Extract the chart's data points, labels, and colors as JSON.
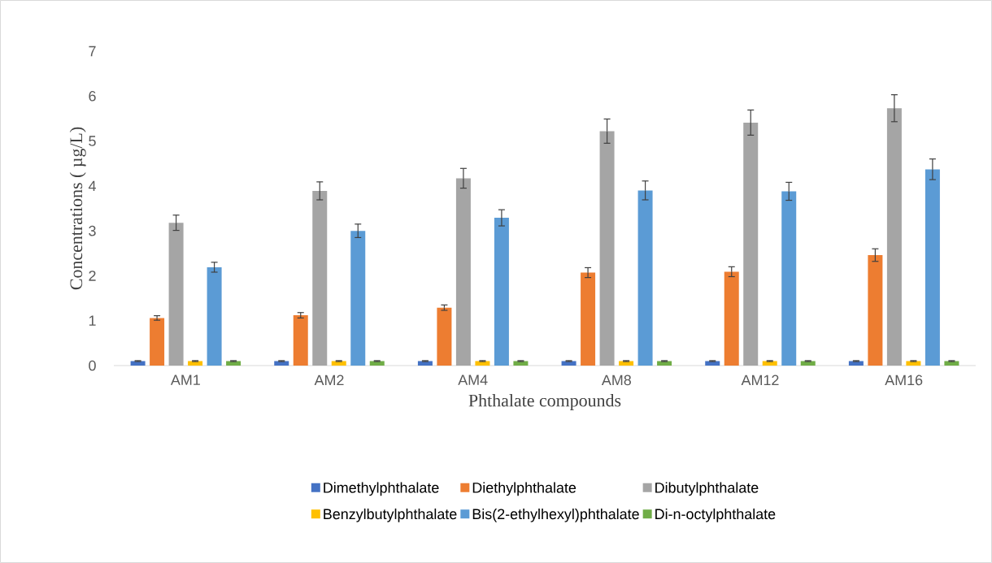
{
  "chart_data": {
    "type": "bar",
    "xlabel": "Phthalate compounds",
    "ylabel": "Concentrations ( µg/L)",
    "categories": [
      "AM1",
      "AM2",
      "AM4",
      "AM8",
      "AM12",
      "AM16"
    ],
    "series": [
      {
        "name": "Dimethylphthalate",
        "color": "#4472c4",
        "values": [
          0.1,
          0.1,
          0.1,
          0.1,
          0.1,
          0.1
        ],
        "errors": [
          0.01,
          0.01,
          0.01,
          0.01,
          0.01,
          0.01
        ]
      },
      {
        "name": "Diethylphthalate",
        "color": "#ed7d31",
        "values": [
          1.06,
          1.12,
          1.29,
          2.07,
          2.09,
          2.46
        ],
        "errors": [
          0.05,
          0.06,
          0.06,
          0.11,
          0.11,
          0.14
        ]
      },
      {
        "name": "Dibutylphthalate",
        "color": "#a5a5a5",
        "values": [
          3.18,
          3.89,
          4.17,
          5.22,
          5.41,
          5.73
        ],
        "errors": [
          0.17,
          0.2,
          0.22,
          0.27,
          0.28,
          0.3
        ]
      },
      {
        "name": "Benzylbutylphthalate",
        "color": "#ffc000",
        "values": [
          0.1,
          0.1,
          0.1,
          0.1,
          0.1,
          0.1
        ],
        "errors": [
          0.01,
          0.01,
          0.01,
          0.01,
          0.01,
          0.01
        ]
      },
      {
        "name": "Bis(2-ethylhexyl)phthalate",
        "color": "#5b9bd5",
        "values": [
          2.19,
          3.0,
          3.29,
          3.9,
          3.88,
          4.37
        ],
        "errors": [
          0.11,
          0.15,
          0.18,
          0.21,
          0.2,
          0.23
        ]
      },
      {
        "name": "Di-n-octylphthalate",
        "color": "#70ad47",
        "values": [
          0.1,
          0.1,
          0.1,
          0.1,
          0.1,
          0.1
        ],
        "errors": [
          0.01,
          0.01,
          0.01,
          0.01,
          0.01,
          0.01
        ]
      }
    ],
    "ylim": [
      0,
      7
    ],
    "yticks": [
      0,
      1,
      2,
      3,
      4,
      5,
      6,
      7
    ],
    "grid": false,
    "legend": "bottom"
  }
}
